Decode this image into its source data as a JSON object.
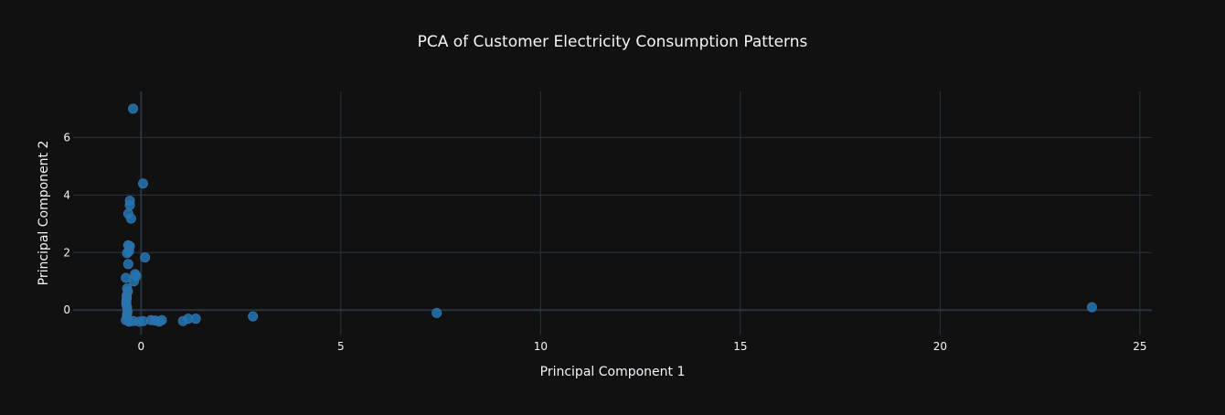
{
  "colors": {
    "background": "#111111",
    "grid": "#283442",
    "zeroline": "#283442",
    "text": "#f2f5fa",
    "marker_fill": "#1f77b4",
    "marker_line": "#3a6ea5"
  },
  "chart_data": {
    "type": "scatter",
    "title": "PCA of Customer Electricity Consumption Patterns",
    "xlabel": "Principal Component 1",
    "ylabel": "Principal Component 2",
    "xlim": [
      -1.7,
      25.3
    ],
    "ylim": [
      -0.85,
      7.6
    ],
    "xticks": [
      0,
      5,
      10,
      15,
      20,
      25
    ],
    "yticks": [
      0,
      2,
      4,
      6
    ],
    "grid": true,
    "legend": "none",
    "points": [
      {
        "x": -0.2,
        "y": 7.0
      },
      {
        "x": 0.05,
        "y": 4.4
      },
      {
        "x": -0.28,
        "y": 3.8
      },
      {
        "x": -0.28,
        "y": 3.65
      },
      {
        "x": -0.32,
        "y": 3.35
      },
      {
        "x": -0.25,
        "y": 3.18
      },
      {
        "x": -0.32,
        "y": 2.25
      },
      {
        "x": -0.28,
        "y": 2.22
      },
      {
        "x": -0.3,
        "y": 2.05
      },
      {
        "x": -0.35,
        "y": 1.98
      },
      {
        "x": 0.1,
        "y": 1.83
      },
      {
        "x": -0.32,
        "y": 1.6
      },
      {
        "x": -0.15,
        "y": 1.25
      },
      {
        "x": -0.12,
        "y": 1.18
      },
      {
        "x": -0.38,
        "y": 1.12
      },
      {
        "x": -0.18,
        "y": 1.0
      },
      {
        "x": -0.35,
        "y": 0.75
      },
      {
        "x": -0.33,
        "y": 0.65
      },
      {
        "x": -0.36,
        "y": 0.5
      },
      {
        "x": -0.36,
        "y": 0.4
      },
      {
        "x": -0.37,
        "y": 0.3
      },
      {
        "x": -0.37,
        "y": 0.2
      },
      {
        "x": -0.35,
        "y": 0.1
      },
      {
        "x": -0.34,
        "y": -0.05
      },
      {
        "x": -0.35,
        "y": -0.15
      },
      {
        "x": -0.36,
        "y": -0.25
      },
      {
        "x": -0.38,
        "y": -0.35
      },
      {
        "x": -0.3,
        "y": -0.4
      },
      {
        "x": -0.2,
        "y": -0.38
      },
      {
        "x": -0.05,
        "y": -0.4
      },
      {
        "x": 0.05,
        "y": -0.38
      },
      {
        "x": 0.25,
        "y": -0.35
      },
      {
        "x": 0.35,
        "y": -0.36
      },
      {
        "x": 0.45,
        "y": -0.4
      },
      {
        "x": 0.52,
        "y": -0.35
      },
      {
        "x": 1.05,
        "y": -0.38
      },
      {
        "x": 1.18,
        "y": -0.3
      },
      {
        "x": 1.37,
        "y": -0.3
      },
      {
        "x": 2.8,
        "y": -0.22
      },
      {
        "x": 7.4,
        "y": -0.1
      },
      {
        "x": 23.8,
        "y": 0.1
      }
    ]
  }
}
